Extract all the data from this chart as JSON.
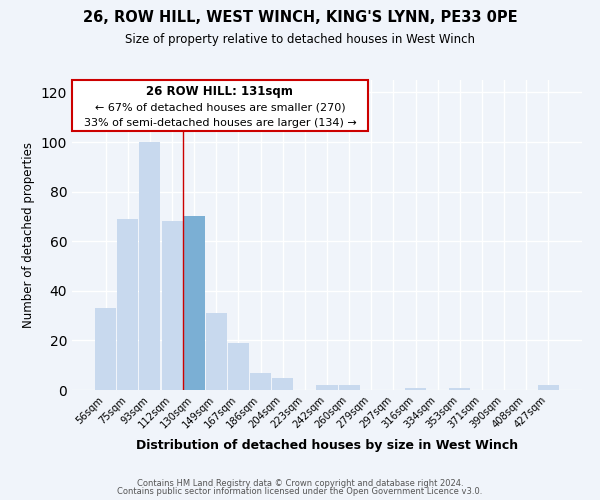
{
  "title": "26, ROW HILL, WEST WINCH, KING'S LYNN, PE33 0PE",
  "subtitle": "Size of property relative to detached houses in West Winch",
  "xlabel": "Distribution of detached houses by size in West Winch",
  "ylabel": "Number of detached properties",
  "bar_color": "#c8d9ee",
  "highlight_bar_color": "#7bafd4",
  "highlight_index": 4,
  "categories": [
    "56sqm",
    "75sqm",
    "93sqm",
    "112sqm",
    "130sqm",
    "149sqm",
    "167sqm",
    "186sqm",
    "204sqm",
    "223sqm",
    "242sqm",
    "260sqm",
    "279sqm",
    "297sqm",
    "316sqm",
    "334sqm",
    "353sqm",
    "371sqm",
    "390sqm",
    "408sqm",
    "427sqm"
  ],
  "values": [
    33,
    69,
    100,
    68,
    70,
    31,
    19,
    7,
    5,
    0,
    2,
    2,
    0,
    0,
    1,
    0,
    1,
    0,
    0,
    0,
    2
  ],
  "ylim": [
    0,
    125
  ],
  "yticks": [
    0,
    20,
    40,
    60,
    80,
    100,
    120
  ],
  "annotation_title": "26 ROW HILL: 131sqm",
  "annotation_line1": "← 67% of detached houses are smaller (270)",
  "annotation_line2": "33% of semi-detached houses are larger (134) →",
  "box_edge_color": "#cc0000",
  "vline_color": "#cc0000",
  "footnote1": "Contains HM Land Registry data © Crown copyright and database right 2024.",
  "footnote2": "Contains public sector information licensed under the Open Government Licence v3.0.",
  "background_color": "#f0f4fa",
  "grid_color": "#ffffff"
}
